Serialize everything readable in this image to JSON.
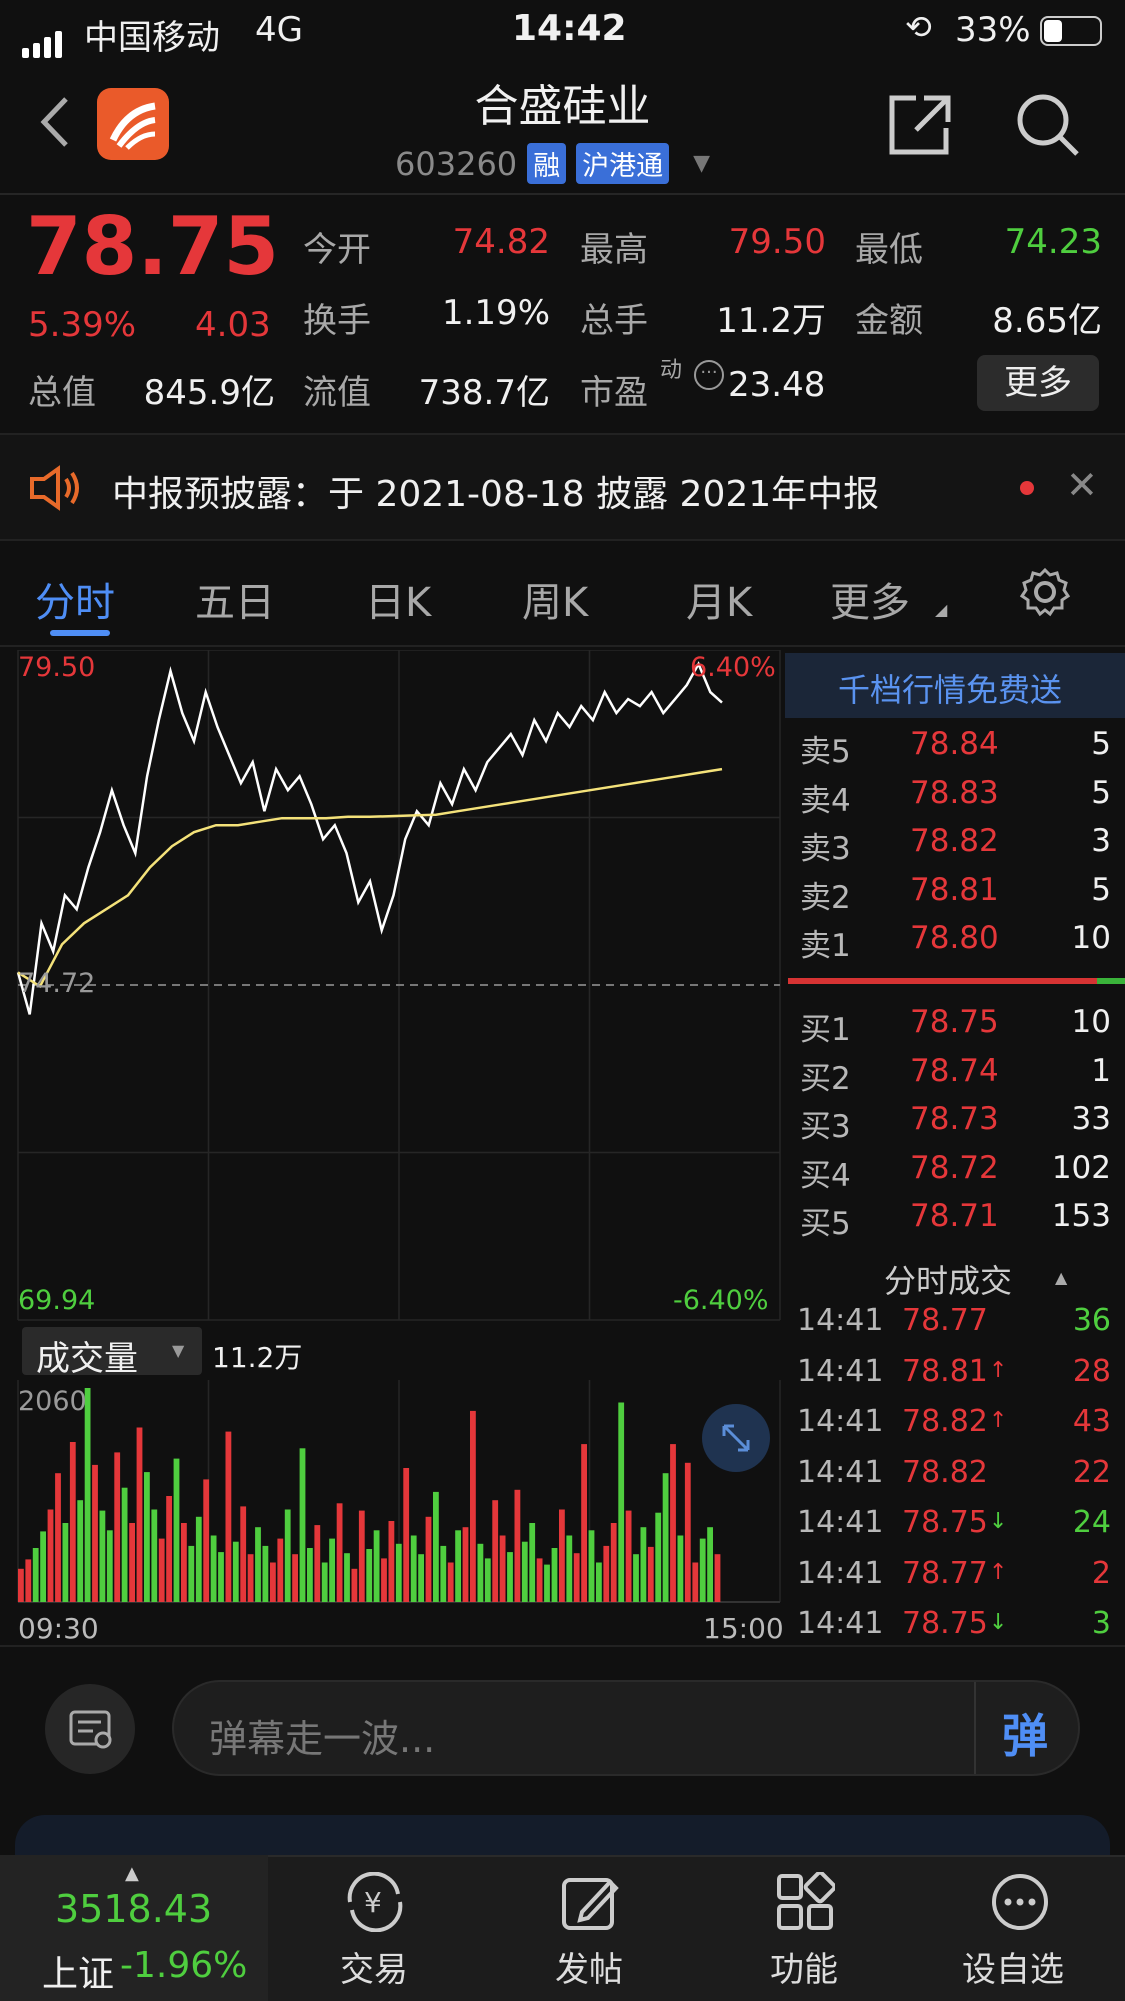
{
  "status_bar": {
    "carrier": "中国移动",
    "network": "4G",
    "time": "14:42",
    "battery": "33%"
  },
  "header": {
    "title": "合盛硅业",
    "code": "603260",
    "tags": [
      "融",
      "沪港通"
    ]
  },
  "quote": {
    "price": "78.75",
    "change_pct": "5.39%",
    "change": "4.03",
    "open_label": "今开",
    "open": "74.82",
    "high_label": "最高",
    "high": "79.50",
    "low_label": "最低",
    "low": "74.23",
    "turnover_label": "换手",
    "turnover": "1.19%",
    "volume_label": "总手",
    "volume": "11.2万",
    "amount_label": "金额",
    "amount": "8.65亿",
    "mcap_label": "总值",
    "mcap": "845.9亿",
    "float_label": "流值",
    "float_val": "738.7亿",
    "pe_label": "市盈",
    "pe_sup": "动",
    "pe": "23.48",
    "more_button": "更多"
  },
  "notice": {
    "text": "中报预披露：于 2021-08-18 披露 2021年中报"
  },
  "tabs": [
    "分时",
    "五日",
    "日K",
    "周K",
    "月K",
    "更多"
  ],
  "chart_data": {
    "type": "line",
    "y_top": "79.50",
    "y_top_pct": "6.40%",
    "y_mid": "74.72",
    "y_bottom": "69.94",
    "y_bottom_pct": "-6.40%",
    "ylim": [
      69.94,
      79.5
    ],
    "prev_close": 74.72,
    "series": [
      {
        "values": [
          74.9,
          74.3,
          75.6,
          75.2,
          76.0,
          75.8,
          76.4,
          76.9,
          77.5,
          77.0,
          76.6,
          77.7,
          78.5,
          79.2,
          78.6,
          78.2,
          78.9,
          78.4,
          78.0,
          77.6,
          77.9,
          77.2,
          77.8,
          77.5,
          77.7,
          77.3,
          76.8,
          77.0,
          76.6,
          75.9,
          76.2,
          75.5,
          76.0,
          76.8,
          77.2,
          77.0,
          77.6,
          77.3,
          77.8,
          77.5,
          77.9,
          78.1,
          78.3,
          78.0,
          78.5,
          78.2,
          78.6,
          78.4,
          78.7,
          78.5,
          78.9,
          78.6,
          78.8,
          78.7,
          78.9,
          78.6,
          78.8,
          79.0,
          79.3,
          78.9,
          78.75
        ]
      },
      {
        "values": [
          74.9,
          74.7,
          75.3,
          75.6,
          75.8,
          76.0,
          76.4,
          76.7,
          76.9,
          77.0,
          77.0,
          77.05,
          77.1,
          77.1,
          77.1,
          77.12,
          77.12,
          77.13,
          77.14,
          77.15,
          77.2,
          77.25,
          77.3,
          77.35,
          77.4,
          77.45,
          77.5,
          77.55,
          77.6,
          77.65,
          77.7,
          77.75,
          77.8
        ]
      }
    ],
    "volume_label": "成交量",
    "volume_total": "11.2万",
    "volume_max": "2060",
    "volume_values": [
      320,
      410,
      520,
      680,
      890,
      1240,
      760,
      1540,
      980,
      2060,
      1320,
      880,
      690,
      1440,
      1100,
      760,
      1680,
      1250,
      890,
      610,
      1020,
      1380,
      760,
      540,
      820,
      1180,
      640,
      480,
      1640,
      580,
      920,
      460,
      720,
      540,
      380,
      610,
      890,
      460,
      1480,
      520,
      740,
      380,
      610,
      950,
      470,
      320,
      880,
      510,
      690,
      420,
      780,
      560,
      1290,
      640,
      460,
      820,
      1060,
      540,
      380,
      690,
      720,
      1840,
      560,
      420,
      980,
      640,
      480,
      1080,
      580,
      760,
      420,
      360,
      520,
      890,
      640,
      470,
      1520,
      690,
      380,
      540,
      760,
      1920,
      880,
      460,
      720,
      530,
      860,
      1240,
      1520,
      640,
      1340,
      380,
      610,
      720,
      460
    ],
    "time_start": "09:30",
    "time_end": "15:00"
  },
  "order_book": {
    "banner": "千档行情免费送",
    "asks": [
      {
        "label": "卖5",
        "price": "78.84",
        "vol": "5"
      },
      {
        "label": "卖4",
        "price": "78.83",
        "vol": "5"
      },
      {
        "label": "卖3",
        "price": "78.82",
        "vol": "3"
      },
      {
        "label": "卖2",
        "price": "78.81",
        "vol": "5"
      },
      {
        "label": "卖1",
        "price": "78.80",
        "vol": "10"
      }
    ],
    "bids": [
      {
        "label": "买1",
        "price": "78.75",
        "vol": "10"
      },
      {
        "label": "买2",
        "price": "78.74",
        "vol": "1"
      },
      {
        "label": "买3",
        "price": "78.73",
        "vol": "33"
      },
      {
        "label": "买4",
        "price": "78.72",
        "vol": "102"
      },
      {
        "label": "买5",
        "price": "78.71",
        "vol": "153"
      }
    ],
    "trades_title": "分时成交",
    "trades": [
      {
        "time": "14:41",
        "price": "78.77",
        "arrow": "",
        "vol": "36",
        "color": "green"
      },
      {
        "time": "14:41",
        "price": "78.81",
        "arrow": "↑",
        "vol": "28",
        "color": "red"
      },
      {
        "time": "14:41",
        "price": "78.82",
        "arrow": "↑",
        "vol": "43",
        "color": "red"
      },
      {
        "time": "14:41",
        "price": "78.82",
        "arrow": "",
        "vol": "22",
        "color": "red"
      },
      {
        "time": "14:41",
        "price": "78.75",
        "arrow": "↓",
        "vol": "24",
        "color": "green"
      },
      {
        "time": "14:41",
        "price": "78.77",
        "arrow": "↑",
        "vol": "2",
        "color": "red"
      },
      {
        "time": "14:41",
        "price": "78.75",
        "arrow": "↓",
        "vol": "3",
        "color": "green"
      }
    ]
  },
  "danmaku": {
    "placeholder": "弹幕走一波...",
    "send": "弹"
  },
  "bottom_nav": {
    "index_value": "3518.43",
    "index_name": "上证",
    "index_change": "-1.96%",
    "items": [
      "交易",
      "发帖",
      "功能",
      "设自选"
    ]
  },
  "colors": {
    "up": "#e5373a",
    "down": "#4fce3f",
    "accent": "#4f8ef5",
    "avg_line": "#f4e27a"
  }
}
